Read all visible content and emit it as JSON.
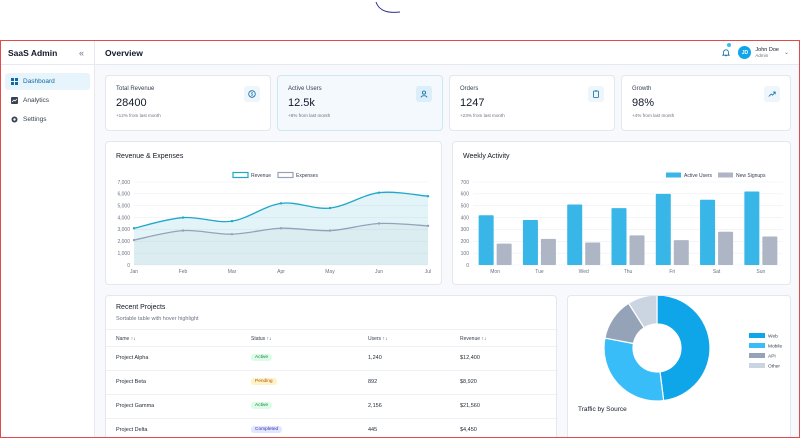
{
  "brand": "SaaS Admin",
  "sidebar": {
    "items": [
      {
        "label": "Dashboard",
        "icon": "dashboard-icon",
        "active": true
      },
      {
        "label": "Analytics",
        "icon": "analytics-icon",
        "active": false
      },
      {
        "label": "Settings",
        "icon": "gear-icon",
        "active": false
      }
    ]
  },
  "header": {
    "title": "Overview",
    "user": {
      "initials": "JD",
      "name": "John Doe",
      "role": "Admin"
    }
  },
  "stats": [
    {
      "label": "Total Revenue",
      "value": "28400",
      "sub": "+12% from last month",
      "icon": "dollar-icon"
    },
    {
      "label": "Active Users",
      "value": "12.5k",
      "sub": "+8% from last month",
      "icon": "users-icon"
    },
    {
      "label": "Orders",
      "value": "1247",
      "sub": "+23% from last month",
      "icon": "clipboard-icon"
    },
    {
      "label": "Growth",
      "value": "98%",
      "sub": "+4% from last month",
      "icon": "trend-up-icon"
    }
  ],
  "revenue_chart": {
    "title": "Revenue & Expenses"
  },
  "weekly_chart": {
    "title": "Weekly Activity"
  },
  "traffic_chart": {
    "title": "Traffic by Source"
  },
  "chart_data": [
    {
      "type": "line",
      "title": "Revenue & Expenses",
      "categories": [
        "Jan",
        "Feb",
        "Mar",
        "Apr",
        "May",
        "Jun",
        "Jul"
      ],
      "series": [
        {
          "name": "Revenue",
          "values": [
            3100,
            4000,
            3700,
            5200,
            4800,
            6100,
            5800
          ],
          "color": "#1fa7c9"
        },
        {
          "name": "Expenses",
          "values": [
            2100,
            2900,
            2600,
            3100,
            2900,
            3500,
            3300
          ],
          "color": "#94a3b8"
        }
      ],
      "ylim": [
        0,
        7000
      ],
      "yticks": [
        "0",
        "1,000",
        "2,000",
        "3,000",
        "4,000",
        "5,000",
        "6,000",
        "7,000"
      ],
      "legend": "top-center",
      "grid": true
    },
    {
      "type": "bar",
      "title": "Weekly Activity",
      "categories": [
        "Mon",
        "Tue",
        "Wed",
        "Thu",
        "Fri",
        "Sat",
        "Sun"
      ],
      "series": [
        {
          "name": "Active Users",
          "values": [
            420,
            380,
            510,
            480,
            600,
            550,
            620
          ],
          "color": "#38b6e8"
        },
        {
          "name": "New Signups",
          "values": [
            180,
            220,
            190,
            250,
            210,
            280,
            240
          ],
          "color": "#aeb6c6"
        }
      ],
      "ylim": [
        0,
        700
      ],
      "yticks": [
        "0",
        "100",
        "200",
        "300",
        "400",
        "500",
        "600",
        "700"
      ],
      "legend": "top-center",
      "grid": true
    },
    {
      "type": "pie",
      "title": "Traffic by Source",
      "categories": [
        "Web",
        "Mobile",
        "API",
        "Other"
      ],
      "values": [
        48,
        30,
        13,
        9
      ],
      "colors": [
        "#0ea5e9",
        "#38bdf8",
        "#94a3b8",
        "#cbd5e1"
      ],
      "legend": "right"
    }
  ],
  "projects": {
    "title": "Recent Projects",
    "subtitle": "Sortable table with hover highlight",
    "columns": [
      "Name",
      "Status",
      "Users",
      "Revenue"
    ],
    "sort_glyph": "↑↓",
    "rows": [
      {
        "name": "Project Alpha",
        "status": "Active",
        "users": "1,240",
        "revenue": "$12,400"
      },
      {
        "name": "Project Beta",
        "status": "Pending",
        "users": "892",
        "revenue": "$8,920"
      },
      {
        "name": "Project Gamma",
        "status": "Active",
        "users": "2,156",
        "revenue": "$21,560"
      },
      {
        "name": "Project Delta",
        "status": "Completed",
        "users": "445",
        "revenue": "$4,450"
      }
    ],
    "status_colors": {
      "Active": {
        "bg": "#dcfce7",
        "fg": "#15803d"
      },
      "Pending": {
        "bg": "#fef3c7",
        "fg": "#b45309"
      },
      "Completed": {
        "bg": "#e0e7ff",
        "fg": "#3730a3"
      }
    }
  }
}
